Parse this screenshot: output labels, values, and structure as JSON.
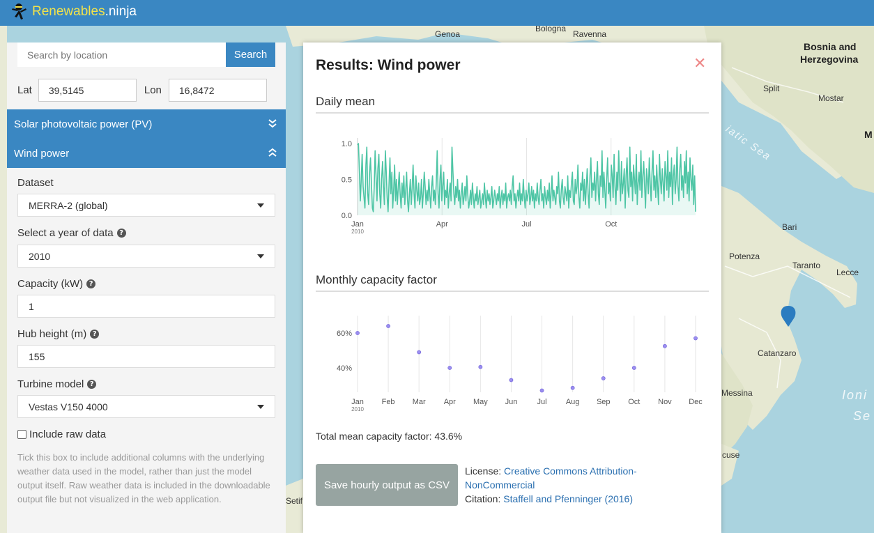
{
  "app": {
    "brand": "Renewables",
    "suffix": ".ninja"
  },
  "map": {
    "labels": [
      {
        "text": "Genoa",
        "cls": "",
        "name": "map-label-genoa"
      },
      {
        "text": "Bologna",
        "cls": "",
        "name": "map-label-bologna"
      },
      {
        "text": "Ravenna",
        "cls": "",
        "name": "map-label-ravenna"
      },
      {
        "text": "Bosnia and",
        "cls": "big",
        "name": "map-label-bosnia-1"
      },
      {
        "text": "Herzegovina",
        "cls": "big",
        "name": "map-label-bosnia-2"
      },
      {
        "text": "Split",
        "cls": "",
        "name": "map-label-split"
      },
      {
        "text": "Mostar",
        "cls": "",
        "name": "map-label-mostar"
      },
      {
        "text": "M",
        "cls": "big",
        "name": "map-label-m"
      },
      {
        "text": "Bari",
        "cls": "",
        "name": "map-label-bari"
      },
      {
        "text": "Potenza",
        "cls": "",
        "name": "map-label-potenza"
      },
      {
        "text": "Taranto",
        "cls": "",
        "name": "map-label-taranto"
      },
      {
        "text": "Lecce",
        "cls": "",
        "name": "map-label-lecce"
      },
      {
        "text": "Catanzaro",
        "cls": "",
        "name": "map-label-catanzaro"
      },
      {
        "text": "Messina",
        "cls": "",
        "name": "map-label-messina"
      },
      {
        "text": "cuse",
        "cls": "",
        "name": "map-label-cuse"
      },
      {
        "text": "Setif",
        "cls": "",
        "name": "map-label-setif"
      },
      {
        "text": "Ioni",
        "cls": "sea",
        "name": "map-label-ionian-1"
      },
      {
        "text": "Se",
        "cls": "sea",
        "name": "map-label-ionian-2"
      },
      {
        "text": "iatic Sea",
        "cls": "sea",
        "name": "map-label-adriatic"
      }
    ]
  },
  "search": {
    "placeholder": "Search by location",
    "button": "Search"
  },
  "coords": {
    "lat_label": "Lat",
    "lat_value": "39,5145",
    "lon_label": "Lon",
    "lon_value": "16,8472"
  },
  "accordion": {
    "solar": "Solar photovoltaic power (PV)",
    "wind": "Wind power"
  },
  "form": {
    "dataset_label": "Dataset",
    "dataset_value": "MERRA-2 (global)",
    "year_label": "Select a year of data",
    "year_value": "2010",
    "capacity_label": "Capacity (kW)",
    "capacity_value": "1",
    "hub_label": "Hub height (m)",
    "hub_value": "155",
    "turbine_label": "Turbine model",
    "turbine_value": "Vestas V150 4000",
    "raw_label": "Include raw data",
    "raw_help": "Tick this box to include additional columns with the underlying weather data used in the model, rather than just the model output itself. Raw weather data is included in the downloadable output file but not visualized in the web application."
  },
  "results": {
    "title": "Results: Wind power",
    "daily_title": "Daily mean",
    "monthly_title": "Monthly capacity factor",
    "summary": "Total mean capacity factor: 43.6%",
    "csv_button": "Save hourly output as CSV",
    "license_label": "License: ",
    "license_link": "Creative Commons Attribution-NonCommercial",
    "citation_label": "Citation: ",
    "citation_link": "Staffell and Pfenninger (2016)"
  },
  "chart_data": [
    {
      "type": "area",
      "title": "Daily mean",
      "color": "#4ec5a5",
      "ylim": [
        0,
        1
      ],
      "y_ticks": [
        "0.0",
        "0.5",
        "1.0"
      ],
      "x_ticks": [
        "Jan",
        "Apr",
        "Jul",
        "Oct"
      ],
      "x_sub": "2010",
      "values": [
        0.98,
        1.0,
        0.6,
        0.2,
        0.5,
        0.85,
        0.4,
        0.25,
        0.1,
        0.7,
        0.95,
        0.3,
        0.15,
        0.6,
        0.8,
        0.45,
        0.1,
        0.05,
        0.4,
        0.9,
        0.55,
        0.2,
        0.65,
        0.85,
        0.3,
        0.1,
        0.5,
        0.75,
        0.4,
        0.15,
        0.9,
        0.6,
        0.25,
        0.05,
        0.45,
        0.8,
        0.3,
        0.6,
        0.1,
        0.35,
        0.7,
        0.2,
        0.5,
        0.15,
        0.4,
        0.6,
        0.3,
        0.1,
        0.45,
        0.25,
        0.55,
        0.15,
        0.35,
        0.6,
        0.2,
        0.05,
        0.3,
        0.5,
        0.15,
        0.4,
        0.7,
        0.3,
        0.1,
        0.55,
        0.35,
        0.2,
        0.45,
        0.15,
        0.25,
        0.5,
        0.1,
        0.3,
        0.6,
        0.4,
        0.15,
        0.35,
        0.2,
        0.5,
        0.3,
        0.1,
        0.4,
        0.55,
        0.2,
        0.35,
        0.15,
        0.45,
        0.9,
        0.3,
        0.1,
        0.5,
        0.7,
        0.2,
        0.4,
        0.6,
        0.15,
        0.35,
        0.25,
        0.5,
        0.1,
        0.3,
        0.45,
        0.2,
        0.95,
        0.6,
        0.3,
        0.15,
        0.4,
        0.25,
        0.5,
        0.2,
        0.35,
        0.1,
        0.3,
        0.45,
        0.15,
        0.25,
        0.4,
        0.2,
        0.55,
        0.3,
        0.1,
        0.2,
        0.35,
        0.15,
        0.45,
        0.25,
        0.1,
        0.3,
        0.2,
        0.4,
        0.15,
        0.25,
        0.35,
        0.1,
        0.2,
        0.3,
        0.15,
        0.45,
        0.25,
        0.1,
        0.35,
        0.2,
        0.3,
        0.15,
        0.25,
        0.4,
        0.1,
        0.2,
        0.35,
        0.25,
        0.15,
        0.3,
        0.2,
        0.4,
        0.1,
        0.25,
        0.35,
        0.15,
        0.3,
        0.2,
        0.45,
        0.1,
        0.25,
        0.3,
        0.2,
        0.35,
        0.15,
        0.4,
        0.55,
        0.2,
        0.3,
        0.1,
        0.25,
        0.35,
        0.2,
        0.45,
        0.15,
        0.3,
        0.2,
        0.5,
        0.25,
        0.1,
        0.35,
        0.2,
        0.3,
        0.45,
        0.15,
        0.25,
        0.4,
        0.2,
        0.35,
        0.1,
        0.3,
        0.2,
        0.45,
        0.25,
        0.15,
        0.35,
        0.5,
        0.2,
        0.3,
        0.1,
        0.4,
        0.25,
        0.15,
        0.35,
        0.2,
        0.45,
        0.1,
        0.3,
        0.55,
        0.2,
        0.35,
        0.25,
        0.15,
        0.4,
        0.3,
        0.6,
        0.2,
        0.1,
        0.35,
        0.5,
        0.25,
        0.15,
        0.4,
        0.3,
        0.2,
        0.55,
        0.1,
        0.35,
        0.25,
        0.45,
        0.6,
        0.2,
        0.15,
        0.5,
        0.3,
        0.4,
        0.7,
        0.25,
        0.1,
        0.45,
        0.35,
        0.6,
        0.2,
        0.5,
        0.15,
        0.4,
        0.65,
        0.3,
        0.1,
        0.55,
        0.8,
        0.25,
        0.45,
        0.35,
        0.6,
        0.2,
        0.5,
        0.75,
        0.3,
        0.15,
        0.55,
        0.4,
        0.9,
        0.25,
        0.6,
        0.35,
        0.1,
        0.5,
        0.8,
        0.3,
        0.45,
        0.2,
        0.7,
        0.55,
        0.25,
        0.85,
        0.4,
        0.15,
        0.6,
        0.35,
        0.9,
        0.5,
        0.2,
        0.75,
        0.3,
        0.45,
        0.65,
        0.1,
        0.55,
        0.8,
        0.35,
        0.25,
        0.95,
        0.4,
        0.6,
        0.2,
        0.7,
        0.5,
        0.3,
        0.85,
        0.15,
        0.45,
        0.6,
        0.35,
        0.9,
        0.25,
        0.55,
        0.75,
        0.4,
        0.1,
        0.65,
        0.5,
        0.3,
        0.8,
        0.45,
        0.2,
        0.6,
        0.9,
        0.35,
        0.55,
        0.25,
        0.7,
        0.4,
        0.15,
        0.85,
        0.5,
        0.3,
        0.65,
        0.45,
        0.2,
        0.75,
        0.55,
        0.35,
        0.9,
        0.25,
        0.6,
        0.4,
        0.8,
        0.15,
        0.55,
        0.7,
        0.3,
        0.5,
        0.95,
        0.4,
        0.2,
        0.65,
        0.85,
        0.35,
        0.55,
        0.25,
        0.75,
        0.45,
        0.9,
        0.3,
        0.6,
        0.2,
        0.8,
        0.5,
        0.35,
        0.7,
        0.15,
        0.55,
        0.05
      ]
    },
    {
      "type": "scatter",
      "title": "Monthly capacity factor",
      "color": "#9b8ef0",
      "ylim": [
        26,
        70
      ],
      "y_ticks": [
        {
          "v": 40,
          "label": "40%"
        },
        {
          "v": 60,
          "label": "60%"
        }
      ],
      "categories": [
        "Jan",
        "Feb",
        "Mar",
        "Apr",
        "May",
        "Jun",
        "Jul",
        "Aug",
        "Sep",
        "Oct",
        "Nov",
        "Dec"
      ],
      "x_sub": "2010",
      "values": [
        60,
        64,
        49,
        40,
        40.5,
        33,
        27,
        28.5,
        34,
        40,
        52.5,
        57
      ]
    }
  ]
}
